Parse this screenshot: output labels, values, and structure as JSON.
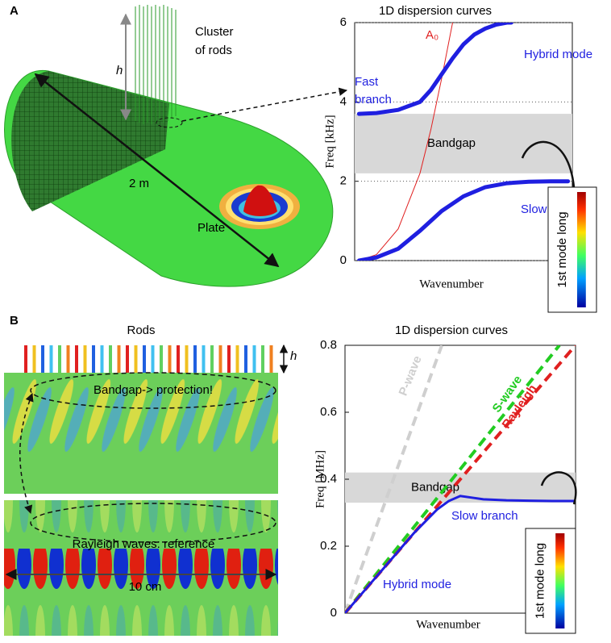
{
  "panels": [
    "A",
    "B"
  ],
  "illustration_a": {
    "cluster_label": [
      "Cluster",
      "of rods"
    ],
    "height_label": "h",
    "length_label": "2 m",
    "plate_label": "Plate"
  },
  "illustration_b": {
    "rods_label": "Rods",
    "height_label": "h",
    "top_label": "Bandgap-> protection!",
    "bottom_label": "Rayleigh waves: reference",
    "width_label": "10 cm"
  },
  "chart_data": [
    {
      "type": "line",
      "title": "1D dispersion curves",
      "xlabel": "Wavenumber",
      "ylabel": "Freq [kHz]",
      "xlim": [
        0,
        1
      ],
      "ylim": [
        0,
        6
      ],
      "yticks": [
        0,
        2,
        4,
        6
      ],
      "grid": true,
      "bandgap": [
        2.2,
        3.7
      ],
      "bandgap_label": "Bandgap",
      "annotation": [
        "Fast",
        "branch"
      ],
      "inset_label": "1st mode long",
      "series": [
        {
          "name": "A₀",
          "color": "#e02020",
          "width": 1,
          "dash": false,
          "x": [
            0.02,
            0.1,
            0.2,
            0.3,
            0.35,
            0.4,
            0.45
          ],
          "values": [
            0,
            0.15,
            0.8,
            2.2,
            3.3,
            4.6,
            6.0
          ]
        },
        {
          "name": "Slow branch",
          "color": "#1f1fe0",
          "width": 5,
          "dash": false,
          "x": [
            0.02,
            0.1,
            0.2,
            0.3,
            0.4,
            0.5,
            0.6,
            0.7,
            0.8,
            0.9,
            0.98
          ],
          "values": [
            0,
            0.08,
            0.3,
            0.75,
            1.25,
            1.62,
            1.85,
            1.95,
            1.99,
            2.0,
            2.0
          ]
        },
        {
          "name": "Hybrid mode",
          "color": "#1f1fe0",
          "width": 5,
          "dash": false,
          "x": [
            0.02,
            0.1,
            0.2,
            0.3,
            0.35,
            0.4,
            0.45,
            0.5,
            0.55,
            0.6,
            0.65,
            0.7,
            0.72
          ],
          "values": [
            3.7,
            3.72,
            3.8,
            4.0,
            4.3,
            4.7,
            5.1,
            5.45,
            5.7,
            5.85,
            5.95,
            6.0,
            6.0
          ]
        }
      ]
    },
    {
      "type": "line",
      "title": "1D dispersion curves",
      "xlabel": "Wavenumber",
      "ylabel": "Freq [MHz]",
      "xlim": [
        0,
        1
      ],
      "ylim": [
        0,
        0.8
      ],
      "yticks": [
        0,
        0.2,
        0.4,
        0.6,
        0.8
      ],
      "grid": false,
      "bandgap": [
        0.33,
        0.42
      ],
      "bandgap_label": "Bandgap",
      "annotation": [
        "Slow branch"
      ],
      "inset_label": "1st mode long",
      "series": [
        {
          "name": "P-wave",
          "color": "#cfcfcf",
          "width": 4,
          "dash": true,
          "x": [
            0,
            0.42
          ],
          "values": [
            0,
            0.8
          ]
        },
        {
          "name": "S-wave",
          "color": "#22cc22",
          "width": 4,
          "dash": true,
          "x": [
            0,
            0.93
          ],
          "values": [
            0,
            0.8
          ]
        },
        {
          "name": "Rayleigh",
          "color": "#e02020",
          "width": 4,
          "dash": true,
          "x": [
            0,
            1.0
          ],
          "values": [
            0,
            0.8
          ]
        },
        {
          "name": "Hybrid mode",
          "color": "#1f1fe0",
          "width": 3,
          "dash": false,
          "x": [
            0,
            0.1,
            0.2,
            0.3,
            0.4,
            0.45,
            0.5,
            0.55,
            0.6,
            0.7,
            0.8,
            0.9,
            1.0
          ],
          "values": [
            0,
            0.08,
            0.16,
            0.24,
            0.31,
            0.335,
            0.35,
            0.345,
            0.34,
            0.337,
            0.336,
            0.335,
            0.335
          ]
        }
      ]
    }
  ]
}
